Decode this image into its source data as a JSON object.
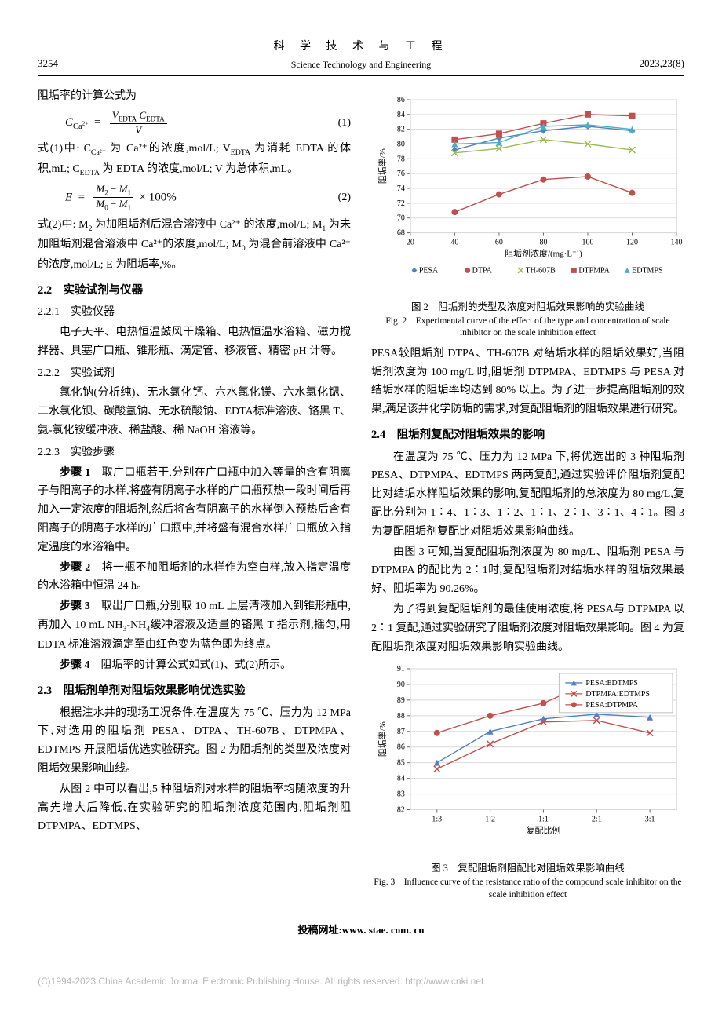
{
  "header": {
    "page_num": "3254",
    "title_cn": "科 学 技 术 与 工 程",
    "title_en": "Science Technology and Engineering",
    "issue": "2023,23(8)"
  },
  "left": {
    "p1": "阻垢率的计算公式为",
    "eq1_lhs": "C",
    "eq1_sub": "Ca²⁺",
    "eq1_num": "V<sub>EDTA</sub> C<sub>EDTA</sub>",
    "eq1_den": "V",
    "eq1_label": "(1)",
    "p2": "式(1)中: C<sub>Ca²⁺</sub> 为 Ca²⁺的浓度,mol/L; V<sub>EDTA</sub> 为消耗 EDTA 的体积,mL; C<sub>EDTA</sub> 为 EDTA 的浓度,mol/L; V 为总体积,mL。",
    "eq2_lhs": "E  =",
    "eq2_num": "M<sub>2</sub> − M<sub>1</sub>",
    "eq2_den": "M<sub>0</sub> − M<sub>1</sub>",
    "eq2_tail": " × 100%",
    "eq2_label": "(2)",
    "p3": "式(2)中: M<sub>2</sub> 为加阻垢剂后混合溶液中 Ca²⁺ 的浓度,mol/L; M<sub>1</sub> 为未加阻垢剂混合溶液中 Ca²⁺的浓度,mol/L; M<sub>0</sub> 为混合前溶液中 Ca²⁺ 的浓度,mol/L; E 为阻垢率,%。",
    "sec22": "2.2　实验试剂与仪器",
    "sub221": "2.2.1　实验仪器",
    "p221": "电子天平、电热恒温鼓风干燥箱、电热恒温水浴箱、磁力搅拌器、具塞广口瓶、锥形瓶、滴定管、移液管、精密 pH 计等。",
    "sub222": "2.2.2　实验试剂",
    "p222": "氯化钠(分析纯)、无水氯化钙、六水氯化镁、六水氯化锶、二水氯化钡、碳酸氢钠、无水硫酸钠、EDTA标准溶液、铬黑 T、氨-氯化铵缓冲液、稀盐酸、稀 NaOH 溶液等。",
    "sub223": "2.2.3　实验步骤",
    "step1": "<b>步骤 1</b>　取广口瓶若干,分别在广口瓶中加入等量的含有阴离子与阳离子的水样,将盛有阴离子水样的广口瓶预热一段时间后再加入一定浓度的阻垢剂,然后将含有阴离子的水样倒入预热后含有阳离子的阴离子水样的广口瓶中,并将盛有混合水样广口瓶放入指定温度的水浴箱中。",
    "step2": "<b>步骤 2</b>　将一瓶不加阻垢剂的水样作为空白样,放入指定温度的水浴箱中恒温 24 h。",
    "step3": "<b>步骤 3</b>　取出广口瓶,分别取 10 mL 上层清液加入到锥形瓶中,再加入 10 mL NH<sub>3</sub>-NH<sub>4</sub>缓冲溶液及适量的铬黑 T 指示剂,摇匀,用 EDTA 标准溶液滴定至由红色变为蓝色即为终点。",
    "step4": "<b>步骤 4</b>　阻垢率的计算公式如式(1)、式(2)所示。",
    "sec23": "2.3　阻垢剂单剂对阻垢效果影响优选实验",
    "p23a": "根据注水井的现场工况条件,在温度为 75 ℃、压力为 12 MPa 下,对选用的阻垢剂 PESA、DTPA、TH-607B、DTPMPA、EDTMPS 开展阻垢优选实验研究。图 2 为阻垢剂的类型及浓度对阻垢效果影响曲线。",
    "p23b": "从图 2 中可以看出,5 种阻垢剂对水样的阻垢率均随浓度的升高先增大后降低,在实验研究的阻垢剂浓度范围内,阻垢剂阻 DTPMPA、EDTMPS、"
  },
  "right": {
    "fig2_cn": "图 2　阻垢剂的类型及浓度对阻垢效果影响的实验曲线",
    "fig2_en": "Fig. 2　Experimental curve of the effect of the type and concentration of scale inhibitor on the scale inhibition effect",
    "pA": "PESA较阻垢剂 DTPA、TH-607B 对结垢水样的阻垢效果好,当阻垢剂浓度为 100 mg/L 时,阻垢剂 DTPMPA、EDTMPS 与 PESA 对结垢水样的阻垢率均达到 80% 以上。为了进一步提高阻垢剂的效果,满足该井化学防垢的需求,对复配阻垢剂的阻垢效果进行研究。",
    "sec24": "2.4　阻垢剂复配对阻垢效果的影响",
    "p24a": "在温度为 75 ℃、压力为 12 MPa 下,将优选出的 3 种阻垢剂 PESA、DTPMPA、EDTMPS 两两复配,通过实验评价阻垢剂复配比对结垢水样阻垢效果的影响,复配阻垢剂的总浓度为 80 mg/L,复配比分别为 1∶4、1∶3、1∶2、1∶1、2∶1、3∶1、4∶1。图 3 为复配阻垢剂复配比对阻垢效果影响曲线。",
    "p24b": "由图 3 可知,当复配阻垢剂浓度为 80 mg/L、阻垢剂 PESA 与 DTPMPA 的配比为 2∶1时,复配阻垢剂对结垢水样的阻垢效果最好、阻垢率为 90.26%。",
    "p24c": "为了得到复配阻垢剂的最佳使用浓度,将 PESA与 DTPMPA 以 2∶1 复配,通过实验研究了阻垢剂浓度对阻垢效果影响。图 4 为复配阻垢剂浓度对阻垢效果影响实验曲线。",
    "fig3_cn": "图 3　复配阻垢剂阻配比对阻垢效果影响曲线",
    "fig3_en": "Fig. 3　Influence curve of the resistance ratio of the compound scale inhibitor on the scale inhibition effect"
  },
  "chart2": {
    "type": "line",
    "xlabel": "阻垢剂浓度/(mg·L⁻¹)",
    "ylabel": "阻垢率/%",
    "xlim": [
      20,
      140
    ],
    "xtick_step": 20,
    "ylim": [
      68,
      86
    ],
    "ytick_step": 2,
    "background_color": "#ffffff",
    "border_color": "#bfbfbf",
    "grid_color": "#d9d9d9",
    "label_fontsize": 11,
    "tick_fontsize": 10,
    "legend_fontsize": 10,
    "series": [
      {
        "name": "PESA",
        "color": "#4f81bd",
        "marker": "diamond",
        "x": [
          40,
          60,
          80,
          100,
          120
        ],
        "y": [
          79.2,
          80.8,
          81.8,
          82.4,
          81.8
        ]
      },
      {
        "name": "DTPA",
        "color": "#c0504d",
        "marker": "circle",
        "x": [
          40,
          60,
          80,
          100,
          120
        ],
        "y": [
          70.8,
          73.2,
          75.2,
          75.6,
          73.4
        ]
      },
      {
        "name": "TH-607B",
        "color": "#9bbb59",
        "marker": "times",
        "x": [
          40,
          60,
          80,
          100,
          120
        ],
        "y": [
          78.8,
          79.4,
          80.6,
          80.0,
          79.2
        ]
      },
      {
        "name": "DTPMPA",
        "color": "#c0504d",
        "marker": "square",
        "x": [
          40,
          60,
          80,
          100,
          120
        ],
        "y": [
          80.6,
          81.4,
          82.8,
          84.0,
          83.8
        ]
      },
      {
        "name": "EDTMPS",
        "color": "#4bacc6",
        "marker": "triangle",
        "x": [
          40,
          60,
          80,
          100,
          120
        ],
        "y": [
          80.0,
          80.2,
          82.4,
          82.6,
          82.0
        ]
      }
    ]
  },
  "chart3": {
    "type": "line",
    "xlabel": "复配比例",
    "ylabel": "阻垢率/%",
    "x_categories": [
      "1:3",
      "1:2",
      "1:1",
      "2:1",
      "3:1"
    ],
    "ylim": [
      82,
      91
    ],
    "ytick_step": 1,
    "background_color": "#ffffff",
    "border_color": "#bfbfbf",
    "grid_color": "#d9d9d9",
    "label_fontsize": 11,
    "tick_fontsize": 10,
    "legend_fontsize": 10,
    "series": [
      {
        "name": "PESA:EDTMPS",
        "color": "#4f81bd",
        "marker": "triangle",
        "y": [
          85.0,
          87.0,
          87.8,
          88.1,
          87.9
        ]
      },
      {
        "name": "DTPMPA:EDTMPS",
        "color": "#c0504d",
        "marker": "times",
        "y": [
          84.6,
          86.2,
          87.6,
          87.7,
          86.9
        ]
      },
      {
        "name": "PESA:DTPMPA",
        "color": "#c0504d",
        "marker": "circle",
        "y": [
          86.9,
          88.0,
          88.8,
          90.3,
          88.6
        ]
      }
    ]
  },
  "footer": {
    "submit": "投稿网址:www. stae. com. cn"
  },
  "watermark": "(C)1994-2023 China Academic Journal Electronic Publishing House. All rights reserved.    http://www.cnki.net"
}
